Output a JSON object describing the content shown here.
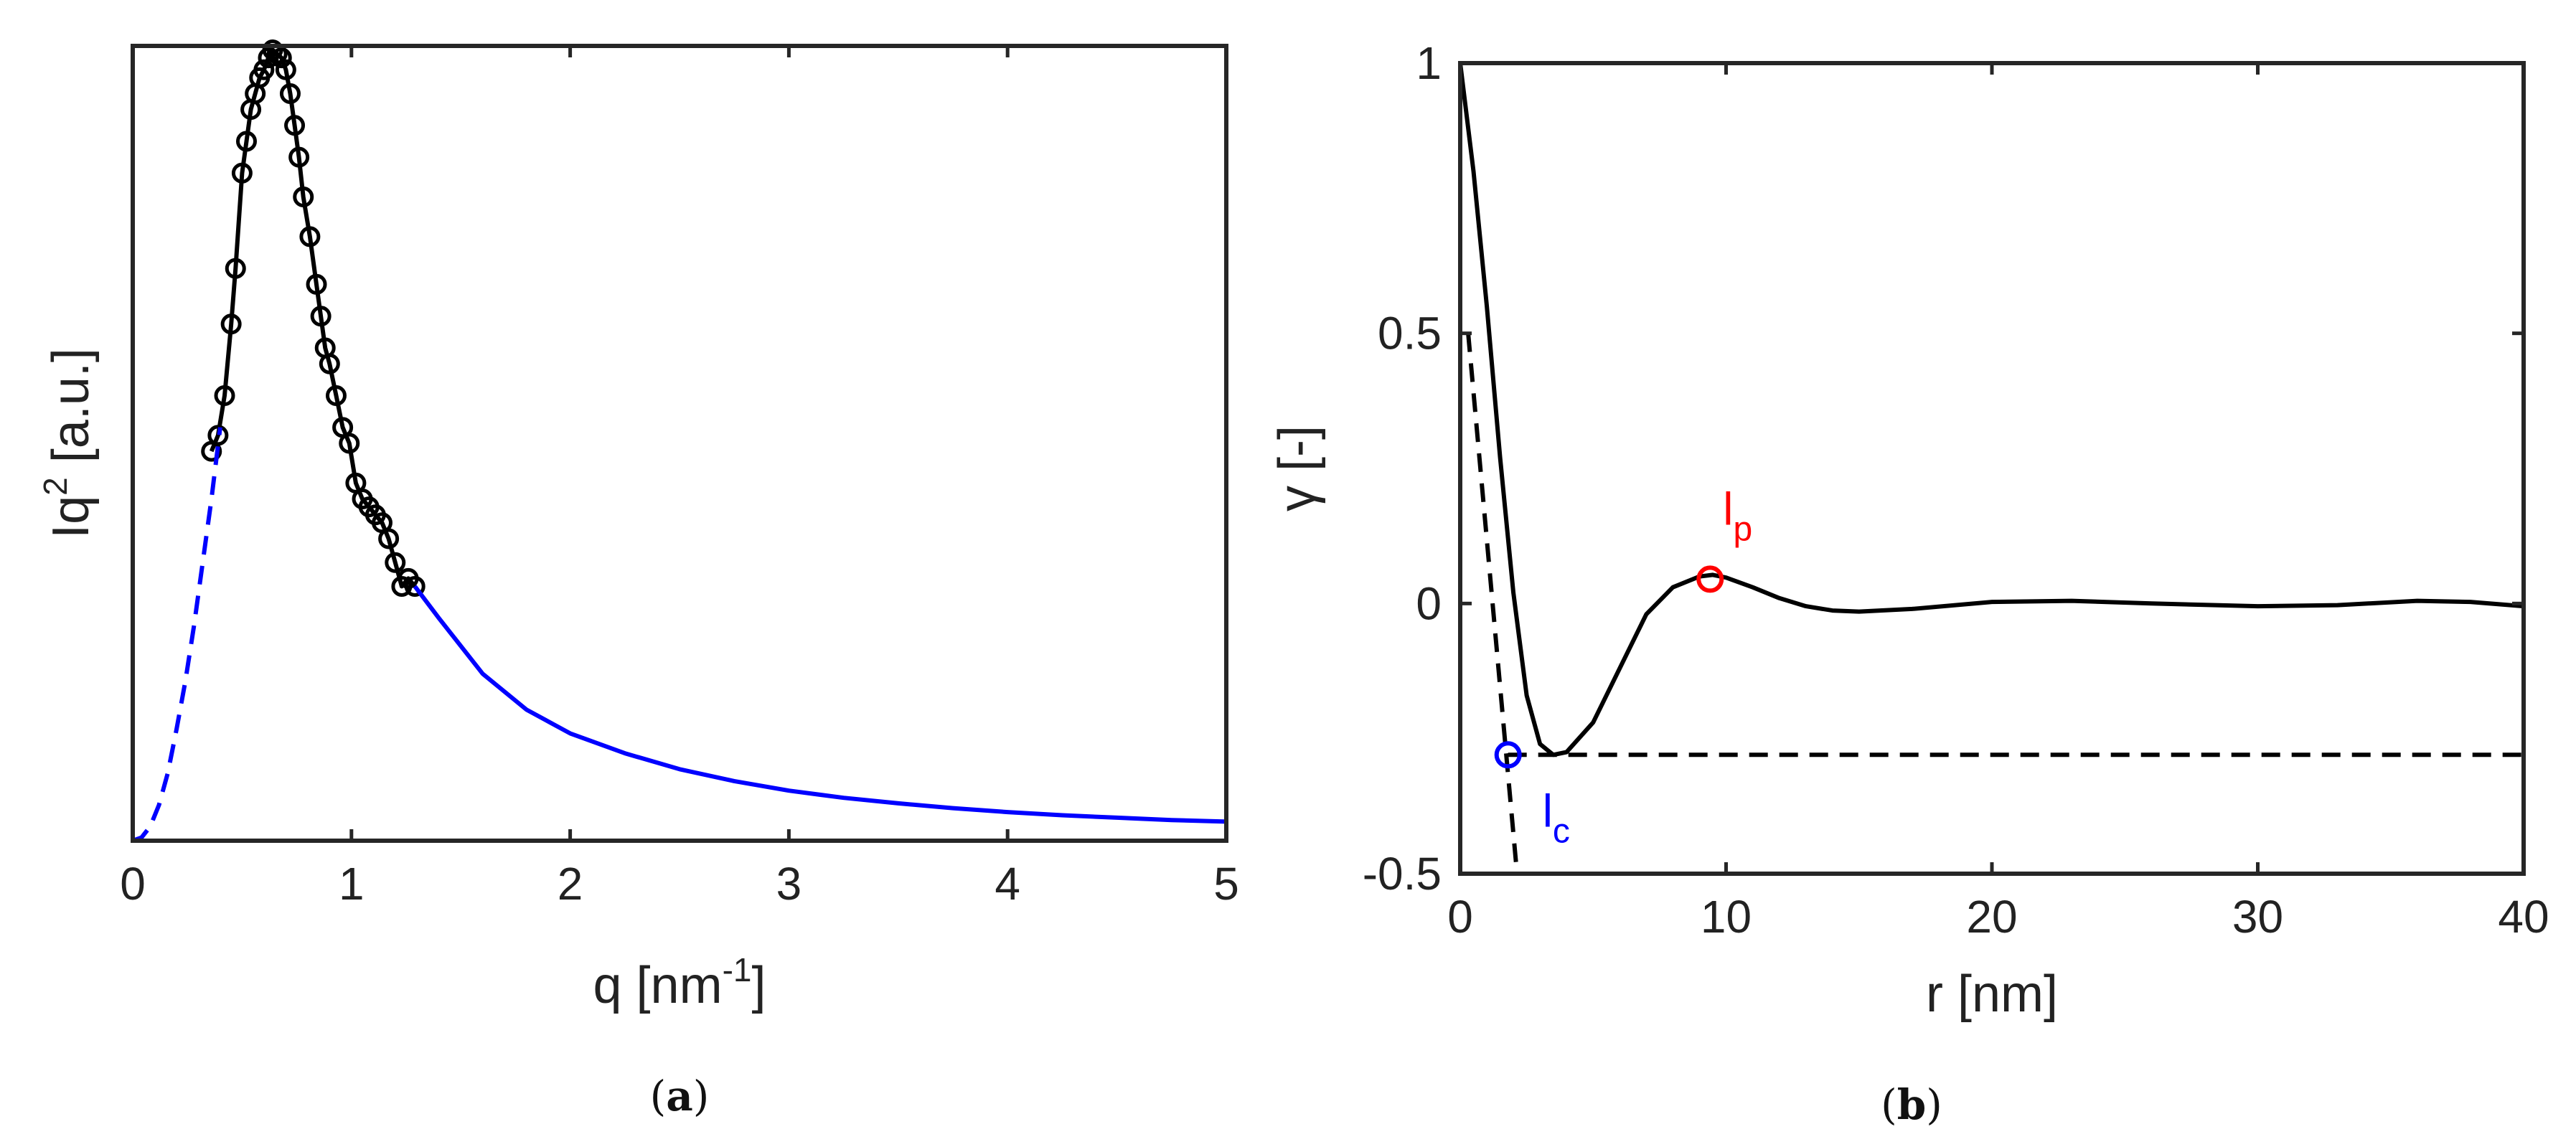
{
  "chart_data": [
    {
      "type": "line",
      "panel_caption": "a",
      "xlabel": "q [nm",
      "xlabel_sup": "-1",
      "xlabel_end": "]",
      "ylabel": "Iq",
      "ylabel_sup": "2",
      "ylabel_end": " [a.u.]",
      "xlim": [
        0,
        5
      ],
      "ylim": [
        0,
        1
      ],
      "xticks": [
        "0",
        "1",
        "2",
        "3",
        "4",
        "5"
      ],
      "yticks": [],
      "grid": false,
      "series": [
        {
          "style": "markers-with-line",
          "color": "#000000",
          "x": [
            0.36,
            0.39,
            0.42,
            0.45,
            0.47,
            0.5,
            0.52,
            0.54,
            0.56,
            0.58,
            0.6,
            0.62,
            0.64,
            0.66,
            0.68,
            0.7,
            0.72,
            0.74,
            0.76,
            0.78,
            0.81,
            0.84,
            0.86,
            0.88,
            0.9,
            0.93,
            0.96,
            0.99,
            1.02,
            1.05,
            1.08,
            1.11,
            1.14,
            1.17,
            1.2,
            1.23,
            1.26,
            1.29
          ],
          "y": [
            0.49,
            0.51,
            0.56,
            0.65,
            0.72,
            0.84,
            0.88,
            0.92,
            0.94,
            0.96,
            0.97,
            0.985,
            0.995,
            0.99,
            0.985,
            0.97,
            0.94,
            0.9,
            0.86,
            0.81,
            0.76,
            0.7,
            0.66,
            0.62,
            0.6,
            0.56,
            0.52,
            0.5,
            0.45,
            0.43,
            0.42,
            0.41,
            0.4,
            0.38,
            0.35,
            0.32,
            0.33,
            0.32
          ]
        },
        {
          "style": "dashed",
          "color": "#0000ff",
          "x": [
            0,
            0.04,
            0.08,
            0.12,
            0.16,
            0.2,
            0.24,
            0.28,
            0.32,
            0.36,
            0.4
          ],
          "y": [
            0,
            0.004,
            0.018,
            0.045,
            0.085,
            0.14,
            0.2,
            0.27,
            0.35,
            0.43,
            0.52
          ]
        },
        {
          "style": "solid",
          "color": "#0000ff",
          "x": [
            1.29,
            1.4,
            1.6,
            1.8,
            2.0,
            2.25,
            2.5,
            2.75,
            3.0,
            3.25,
            3.5,
            3.75,
            4.0,
            4.25,
            4.5,
            4.75,
            5.0
          ],
          "y": [
            0.32,
            0.28,
            0.21,
            0.165,
            0.135,
            0.11,
            0.09,
            0.075,
            0.063,
            0.054,
            0.047,
            0.041,
            0.036,
            0.032,
            0.029,
            0.026,
            0.024
          ]
        }
      ]
    },
    {
      "type": "line",
      "panel_caption": "b",
      "xlabel": "r [nm]",
      "ylabel": "γ [-]",
      "xlim": [
        0,
        40
      ],
      "ylim": [
        -0.5,
        1
      ],
      "xticks": [
        "0",
        "10",
        "20",
        "30",
        "40"
      ],
      "yticks": [
        "-0.5",
        "0",
        "0.5",
        "1"
      ],
      "grid": false,
      "series": [
        {
          "style": "solid",
          "color": "#000000",
          "x": [
            0,
            0.5,
            1,
            1.5,
            2,
            2.5,
            3,
            3.5,
            4,
            5,
            6,
            7,
            8,
            9,
            9.5,
            10,
            11,
            12,
            13,
            14,
            15,
            17,
            20,
            23,
            26,
            30,
            33,
            36,
            38,
            40
          ],
          "y": [
            1,
            0.8,
            0.55,
            0.27,
            0.02,
            -0.17,
            -0.26,
            -0.28,
            -0.275,
            -0.22,
            -0.12,
            -0.02,
            0.03,
            0.05,
            0.053,
            0.048,
            0.03,
            0.01,
            -0.005,
            -0.013,
            -0.015,
            -0.01,
            0.003,
            0.005,
            0.0,
            -0.005,
            -0.003,
            0.005,
            0.003,
            -0.005
          ]
        },
        {
          "style": "dashed",
          "color": "#000000",
          "x": [
            0.3,
            2.1
          ],
          "y": [
            0.5,
            -0.48
          ]
        },
        {
          "style": "dashed",
          "color": "#000000",
          "x": [
            1.8,
            40
          ],
          "y": [
            -0.28,
            -0.28
          ]
        }
      ],
      "markers": [
        {
          "label": "l",
          "label_sub": "c",
          "x": 1.8,
          "y": -0.28,
          "color": "#0000ff"
        },
        {
          "label": "l",
          "label_sub": "p",
          "x": 9.4,
          "y": 0.045,
          "color": "#ff0000"
        }
      ]
    }
  ]
}
